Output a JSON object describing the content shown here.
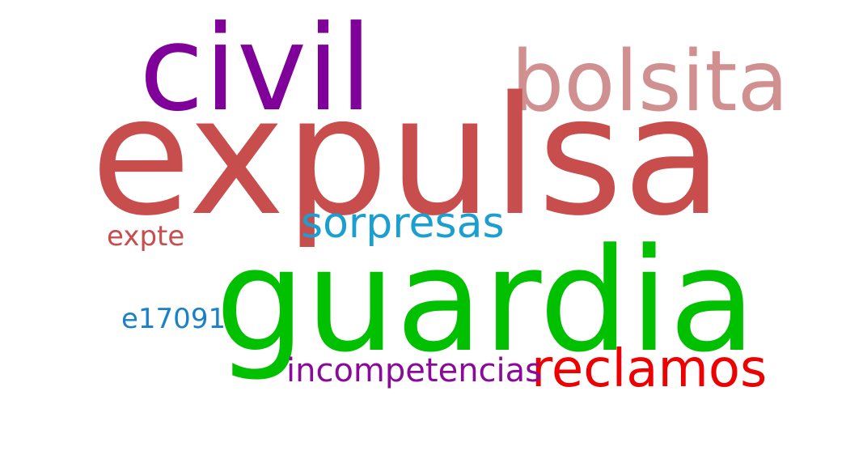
{
  "words": {
    "civil": {
      "text": "civil",
      "color": "#80009a"
    },
    "bolsita": {
      "text": "bolsita",
      "color": "#d09090"
    },
    "expulsa": {
      "text": "expulsa",
      "color": "#c84d4d"
    },
    "sorpresas": {
      "text": "sorpresas",
      "color": "#1a9fd0"
    },
    "expte": {
      "text": "expte",
      "color": "#c84d4d"
    },
    "guardia": {
      "text": "guardia",
      "color": "#00c000"
    },
    "e17091": {
      "text": "e17091",
      "color": "#1a80c8"
    },
    "reclamos": {
      "text": "reclamos",
      "color": "#ee0000"
    },
    "incompetencias": {
      "text": "incompetencias",
      "color": "#8a0a9a"
    }
  }
}
